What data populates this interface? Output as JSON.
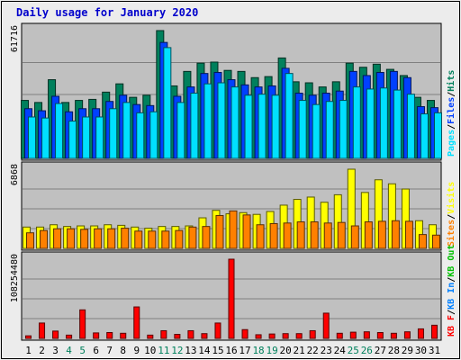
{
  "title": "Daily usage for January 2020",
  "colors": {
    "background": "#ececec",
    "panel": "#c0c0c0",
    "title": "#0000cc",
    "hits": "#00805c",
    "files": "#0040ff",
    "pages": "#00e0ff",
    "visits": "#ffff00",
    "sites": "#ff8000",
    "kb_f": "#ff0000",
    "kb_in": "#0080ff",
    "kb_out": "#00c000",
    "weekend_label": "#00805c"
  },
  "chart_data": [
    {
      "type": "bar",
      "panel": "top",
      "max_label": "61716",
      "ylim": [
        0,
        61716
      ],
      "categories": [
        "1",
        "2",
        "3",
        "4",
        "5",
        "6",
        "7",
        "8",
        "9",
        "10",
        "11",
        "12",
        "13",
        "14",
        "15",
        "16",
        "17",
        "18",
        "19",
        "20",
        "21",
        "22",
        "23",
        "24",
        "25",
        "26",
        "27",
        "28",
        "29",
        "30",
        "31"
      ],
      "weekend_days": [
        4,
        5,
        11,
        12,
        18,
        19,
        25,
        26
      ],
      "legend": [
        {
          "text": "Pages",
          "color": "#00e0ff"
        },
        {
          "text": "/",
          "color": "#000000"
        },
        {
          "text": "Files",
          "color": "#0040ff"
        },
        {
          "text": "/",
          "color": "#000000"
        },
        {
          "text": "Hits",
          "color": "#00805c"
        }
      ],
      "series": [
        {
          "name": "Hits",
          "color": "#00805c",
          "values": [
            28000,
            27000,
            38000,
            27000,
            28000,
            28500,
            32000,
            36000,
            29500,
            30500,
            61716,
            35000,
            42000,
            46000,
            46500,
            42500,
            42000,
            39000,
            39500,
            48500,
            37000,
            36500,
            34500,
            37000,
            46000,
            44000,
            45500,
            43000,
            40000,
            29500,
            28000
          ]
        },
        {
          "name": "Files",
          "color": "#0040ff",
          "values": [
            24000,
            23000,
            30000,
            22500,
            24000,
            24000,
            27500,
            30500,
            26000,
            25500,
            56000,
            30000,
            34500,
            41000,
            41500,
            38000,
            35500,
            34500,
            35000,
            43500,
            31500,
            30500,
            31500,
            32500,
            42000,
            40000,
            41500,
            42000,
            39000,
            25000,
            24500
          ]
        },
        {
          "name": "Pages",
          "color": "#00e0ff",
          "values": [
            20000,
            19500,
            26500,
            18000,
            20000,
            20000,
            24000,
            27000,
            22000,
            22500,
            53500,
            27000,
            31500,
            36000,
            36500,
            34500,
            30500,
            31000,
            30500,
            41000,
            28000,
            26000,
            27500,
            28000,
            34500,
            33500,
            34000,
            33000,
            31000,
            21500,
            22000
          ]
        }
      ]
    },
    {
      "type": "bar",
      "panel": "middle",
      "max_label": "6868",
      "ylim": [
        0,
        6868
      ],
      "categories": [
        "1",
        "2",
        "3",
        "4",
        "5",
        "6",
        "7",
        "8",
        "9",
        "10",
        "11",
        "12",
        "13",
        "14",
        "15",
        "16",
        "17",
        "18",
        "19",
        "20",
        "21",
        "22",
        "23",
        "24",
        "25",
        "26",
        "27",
        "28",
        "29",
        "30",
        "31"
      ],
      "legend": [
        {
          "text": "Sites",
          "color": "#ff8000"
        },
        {
          "text": "/",
          "color": "#000000"
        },
        {
          "text": "Visits",
          "color": "#ffff00"
        }
      ],
      "series": [
        {
          "name": "Visits",
          "color": "#ffff00",
          "values": [
            1850,
            1850,
            2050,
            1900,
            1950,
            1950,
            2050,
            2000,
            1850,
            1750,
            1900,
            1900,
            1950,
            2650,
            3300,
            3000,
            3100,
            2950,
            3200,
            3750,
            4250,
            4450,
            4000,
            4650,
            6868,
            4850,
            5950,
            5600,
            5150,
            2400,
            2050
          ]
        },
        {
          "name": "Sites",
          "color": "#ff8000",
          "values": [
            1350,
            1550,
            1700,
            1700,
            1650,
            1700,
            1700,
            1750,
            1500,
            1500,
            1500,
            1550,
            1850,
            1900,
            2850,
            3250,
            2900,
            2050,
            2150,
            2200,
            2300,
            2300,
            2200,
            2250,
            1950,
            2300,
            2350,
            2400,
            2350,
            1200,
            1150
          ]
        }
      ]
    },
    {
      "type": "bar",
      "panel": "bottom",
      "max_label": "108254480",
      "ylim": [
        0,
        108254480
      ],
      "categories": [
        "1",
        "2",
        "3",
        "4",
        "5",
        "6",
        "7",
        "8",
        "9",
        "10",
        "11",
        "12",
        "13",
        "14",
        "15",
        "16",
        "17",
        "18",
        "19",
        "20",
        "21",
        "22",
        "23",
        "24",
        "25",
        "26",
        "27",
        "28",
        "29",
        "30",
        "31"
      ],
      "legend": [
        {
          "text": "KB F",
          "color": "#ff0000"
        },
        {
          "text": "/",
          "color": "#000000"
        },
        {
          "text": "KB In",
          "color": "#0080ff"
        },
        {
          "text": "/",
          "color": "#000000"
        },
        {
          "text": "KB Out",
          "color": "#00c000"
        }
      ],
      "series": [
        {
          "name": "KB F",
          "color": "#ff0000",
          "values": [
            3500000,
            21000000,
            10000000,
            4500000,
            39000000,
            7500000,
            8000000,
            7000000,
            43000000,
            4500000,
            10500000,
            5500000,
            10500000,
            6500000,
            21000000,
            108254480,
            12000000,
            5000000,
            6000000,
            6500000,
            6500000,
            10500000,
            34500000,
            7000000,
            8500000,
            9000000,
            8000000,
            7000000,
            9000000,
            13000000,
            18000000
          ]
        }
      ]
    }
  ]
}
